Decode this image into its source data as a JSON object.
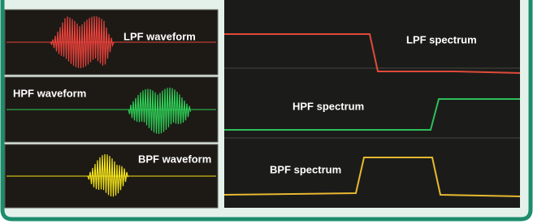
{
  "waveforms": [
    "LPF waveform",
    "HPF waveform",
    "BPF waveform"
  ],
  "spectra": [
    "LPF spectrum",
    "HPF spectrum",
    "BPF spectrum"
  ]
}
